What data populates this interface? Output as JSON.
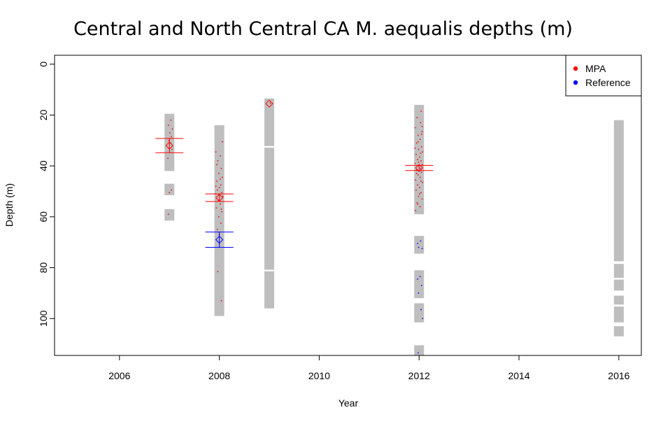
{
  "chart_data": {
    "type": "scatter",
    "title": "Central and North Central CA M. aequalis depths (m)",
    "xlabel": "Year",
    "ylabel": "Depth (m)",
    "xlim": [
      2004.7,
      2016.45
    ],
    "ylim": [
      114.5,
      -3.5
    ],
    "x_ticks": [
      2006,
      2008,
      2010,
      2012,
      2014,
      2016
    ],
    "y_ticks": [
      0,
      20,
      40,
      60,
      80,
      100
    ],
    "y_reversed": true,
    "grid": false,
    "legend": {
      "position": "top-right",
      "entries": [
        {
          "label": "MPA",
          "color": "#ff0000"
        },
        {
          "label": "Reference",
          "color": "#0000ff"
        }
      ]
    },
    "sampled_depth_ranges": [
      {
        "year": 2007,
        "ranges": [
          [
            19.5,
            42
          ],
          [
            47,
            51.5
          ],
          [
            57,
            61.5
          ]
        ]
      },
      {
        "year": 2008,
        "ranges": [
          [
            24,
            99
          ]
        ]
      },
      {
        "year": 2009,
        "ranges": [
          [
            13.5,
            32.2
          ],
          [
            32.8,
            80.8
          ],
          [
            81.4,
            96
          ]
        ]
      },
      {
        "year": 2012,
        "ranges": [
          [
            16,
            59
          ],
          [
            67.5,
            74.5
          ],
          [
            81,
            92
          ],
          [
            94,
            101.5
          ],
          [
            110.5,
            114.5
          ]
        ]
      },
      {
        "year": 2016,
        "ranges": [
          [
            22,
            77.5
          ],
          [
            78.5,
            84
          ],
          [
            84.7,
            89
          ],
          [
            91,
            94.5
          ],
          [
            95.3,
            101.5
          ],
          [
            103,
            107
          ]
        ]
      }
    ],
    "series": [
      {
        "name": "MPA",
        "color": "#ff0000",
        "means": [
          {
            "year": 2007,
            "mean": 32,
            "se_low": 29.2,
            "se_high": 34.8
          },
          {
            "year": 2008,
            "mean": 52.5,
            "se_low": 51,
            "se_high": 54
          },
          {
            "year": 2009,
            "mean": 15.5,
            "se_low": null,
            "se_high": null
          },
          {
            "year": 2012,
            "mean": 40.8,
            "se_low": 39.8,
            "se_high": 41.8
          }
        ],
        "points": [
          [
            2007.03,
            22
          ],
          [
            2006.98,
            24
          ],
          [
            2007.06,
            25.5
          ],
          [
            2007.01,
            27
          ],
          [
            2007.04,
            28.5
          ],
          [
            2006.99,
            30
          ],
          [
            2007.02,
            31
          ],
          [
            2007.05,
            33.5
          ],
          [
            2006.97,
            37
          ],
          [
            2007.04,
            49.5
          ],
          [
            2007.0,
            50.5
          ],
          [
            2006.98,
            59
          ],
          [
            2007.93,
            34.5
          ],
          [
            2008.02,
            36
          ],
          [
            2007.97,
            38
          ],
          [
            2008.04,
            41
          ],
          [
            2007.99,
            43
          ],
          [
            2008.06,
            44.5
          ],
          [
            2007.95,
            46
          ],
          [
            2008.03,
            47.5
          ],
          [
            2008.0,
            48.5
          ],
          [
            2007.96,
            49.5
          ],
          [
            2008.05,
            50.5
          ],
          [
            2007.92,
            51
          ],
          [
            2008.07,
            52
          ],
          [
            2007.98,
            53.5
          ],
          [
            2008.02,
            55
          ],
          [
            2007.94,
            56.5
          ],
          [
            2008.05,
            58
          ],
          [
            2007.99,
            60
          ],
          [
            2008.03,
            62.5
          ],
          [
            2007.96,
            65
          ],
          [
            2008.0,
            67
          ],
          [
            2007.97,
            81.5
          ],
          [
            2008.04,
            93
          ],
          [
            2008.06,
            30.5
          ],
          [
            2007.95,
            39.5
          ],
          [
            2008.02,
            45.2
          ],
          [
            2007.93,
            48
          ],
          [
            2008.04,
            57
          ],
          [
            2009.02,
            15.3
          ],
          [
            2012.04,
            18.5
          ],
          [
            2011.96,
            21
          ],
          [
            2012.03,
            23
          ],
          [
            2011.93,
            25
          ],
          [
            2012.06,
            26.5
          ],
          [
            2011.98,
            28
          ],
          [
            2012.02,
            29.5
          ],
          [
            2011.95,
            31
          ],
          [
            2012.05,
            32.5
          ],
          [
            2011.99,
            33.5
          ],
          [
            2012.07,
            34.5
          ],
          [
            2011.94,
            35.5
          ],
          [
            2012.01,
            36.5
          ],
          [
            2011.97,
            37.5
          ],
          [
            2012.04,
            38
          ],
          [
            2011.92,
            39
          ],
          [
            2012.06,
            39.5
          ],
          [
            2011.99,
            40
          ],
          [
            2012.03,
            41
          ],
          [
            2011.95,
            41.5
          ],
          [
            2012.05,
            42.5
          ],
          [
            2011.98,
            43.5
          ],
          [
            2012.02,
            44.5
          ],
          [
            2011.93,
            45.5
          ],
          [
            2012.07,
            46.5
          ],
          [
            2011.97,
            47.5
          ],
          [
            2012.01,
            48.5
          ],
          [
            2011.94,
            49.5
          ],
          [
            2012.04,
            50.5
          ],
          [
            2011.99,
            52
          ],
          [
            2012.06,
            53
          ],
          [
            2011.96,
            54.5
          ],
          [
            2012.02,
            56
          ],
          [
            2011.93,
            57.5
          ],
          [
            2012.05,
            27.5
          ],
          [
            2011.98,
            30.5
          ],
          [
            2012.03,
            35
          ],
          [
            2011.95,
            43
          ],
          [
            2012.01,
            51
          ],
          [
            2011.97,
            55
          ],
          [
            2012.06,
            24.5
          ],
          [
            2011.92,
            33
          ],
          [
            2012.04,
            46
          ],
          [
            2011.99,
            38.5
          ]
        ]
      },
      {
        "name": "Reference",
        "color": "#0000ff",
        "means": [
          {
            "year": 2008,
            "mean": 69,
            "se_low": 66,
            "se_high": 72
          }
        ],
        "points": [
          [
            2011.97,
            70.5
          ],
          [
            2012.03,
            69.5
          ],
          [
            2012.06,
            72.5
          ],
          [
            2011.99,
            72
          ],
          [
            2012.02,
            83.5
          ],
          [
            2011.97,
            84.5
          ],
          [
            2012.05,
            87
          ],
          [
            2011.99,
            90
          ],
          [
            2012.04,
            96.5
          ],
          [
            2012.07,
            100
          ],
          [
            2011.98,
            113.5
          ]
        ]
      }
    ]
  }
}
